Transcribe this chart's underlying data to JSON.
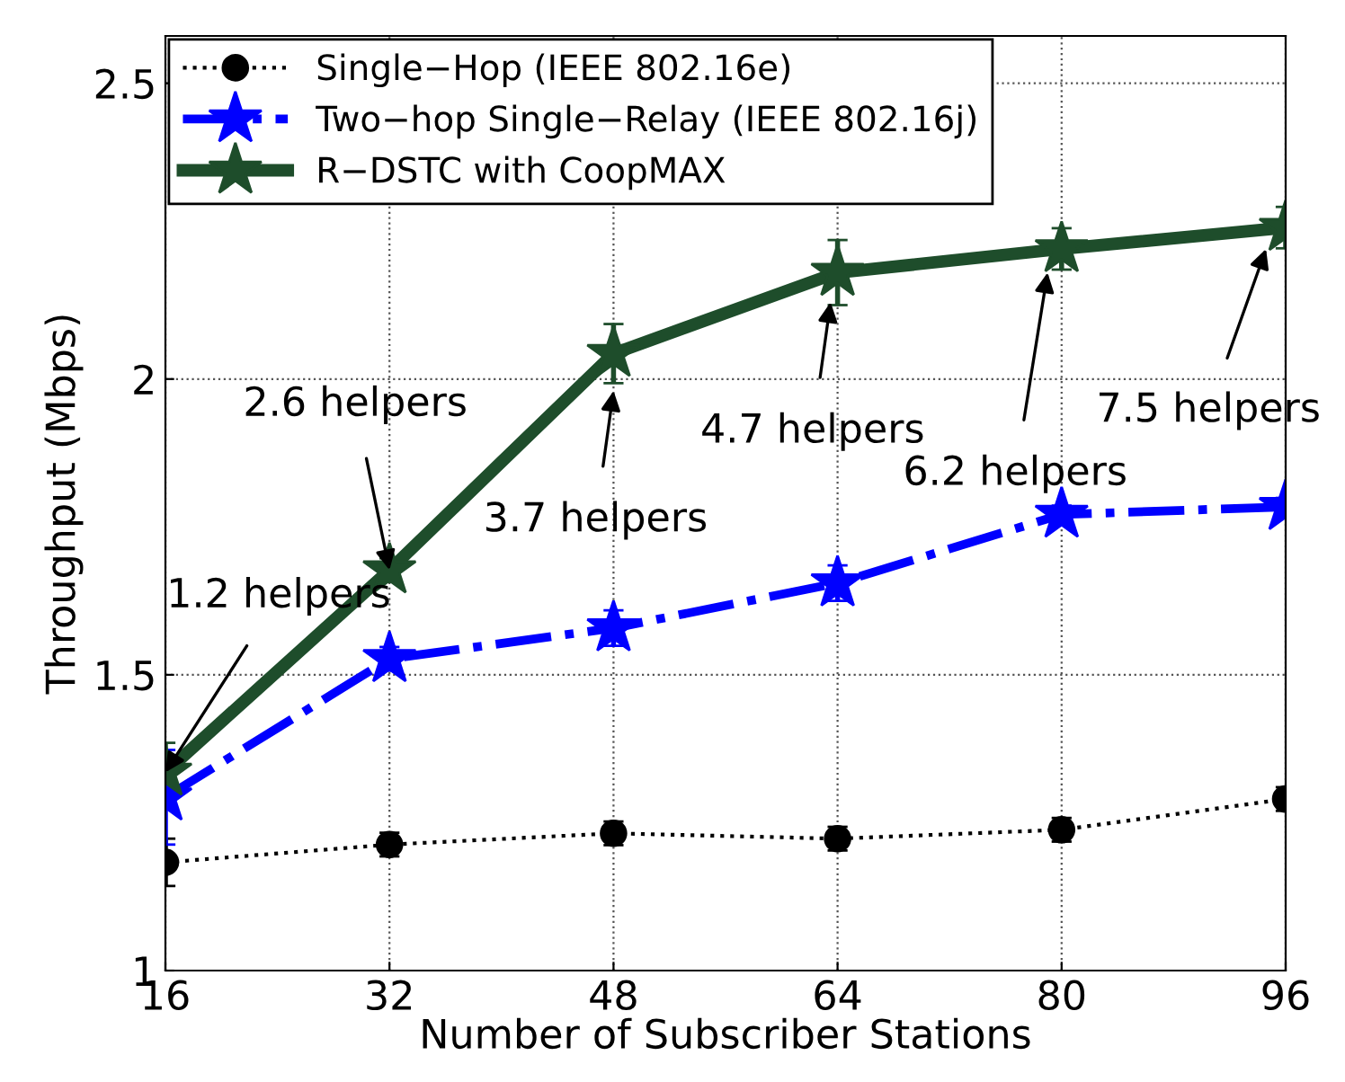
{
  "chart_data": {
    "type": "line",
    "xlabel": "Number of Subscriber Stations",
    "ylabel": "Throughput (Mbps)",
    "x": [
      16,
      32,
      48,
      64,
      80,
      96
    ],
    "xlim": [
      16,
      96
    ],
    "xticks": [
      16,
      32,
      48,
      64,
      80,
      96
    ],
    "ylim": [
      1,
      2.58
    ],
    "yticks": [
      1,
      1.5,
      2,
      2.5
    ],
    "grid": true,
    "legend": "top left",
    "series": [
      {
        "name": "Single−Hop (IEEE 802.16e)",
        "color": "#000000",
        "marker": "circle",
        "line_style": "dotted",
        "values": [
          1.183,
          1.213,
          1.232,
          1.223,
          1.238,
          1.29
        ],
        "errors": [
          0.04,
          0.02,
          0.02,
          0.02,
          0.02,
          0.02
        ]
      },
      {
        "name": "Two−hop Single−Relay (IEEE 802.16j)",
        "color": "#0000ff",
        "marker": "star",
        "line_style": "dashdot",
        "values": [
          1.293,
          1.527,
          1.579,
          1.655,
          1.771,
          1.784
        ],
        "errors": [
          0.08,
          0.02,
          0.03,
          0.03,
          0.015,
          0.015
        ]
      },
      {
        "name": "R−DSTC with CoopMAX",
        "color": "#1e4d2b",
        "marker": "star",
        "line_style": "solid",
        "values": [
          1.335,
          1.677,
          2.043,
          2.18,
          2.22,
          2.256
        ],
        "errors": [
          0.05,
          0.02,
          0.05,
          0.055,
          0.035,
          0.035
        ]
      }
    ],
    "annotations": [
      {
        "text": "1.2 helpers",
        "x": 16,
        "y": 1.335
      },
      {
        "text": "2.6 helpers",
        "x": 32,
        "y": 1.677
      },
      {
        "text": "3.7 helpers",
        "x": 48,
        "y": 1.98
      },
      {
        "text": "4.7 helpers",
        "x": 63.5,
        "y": 2.13
      },
      {
        "text": "6.2 helpers",
        "x": 79,
        "y": 2.18
      },
      {
        "text": "7.5 helpers",
        "x": 94.6,
        "y": 2.22
      }
    ]
  }
}
